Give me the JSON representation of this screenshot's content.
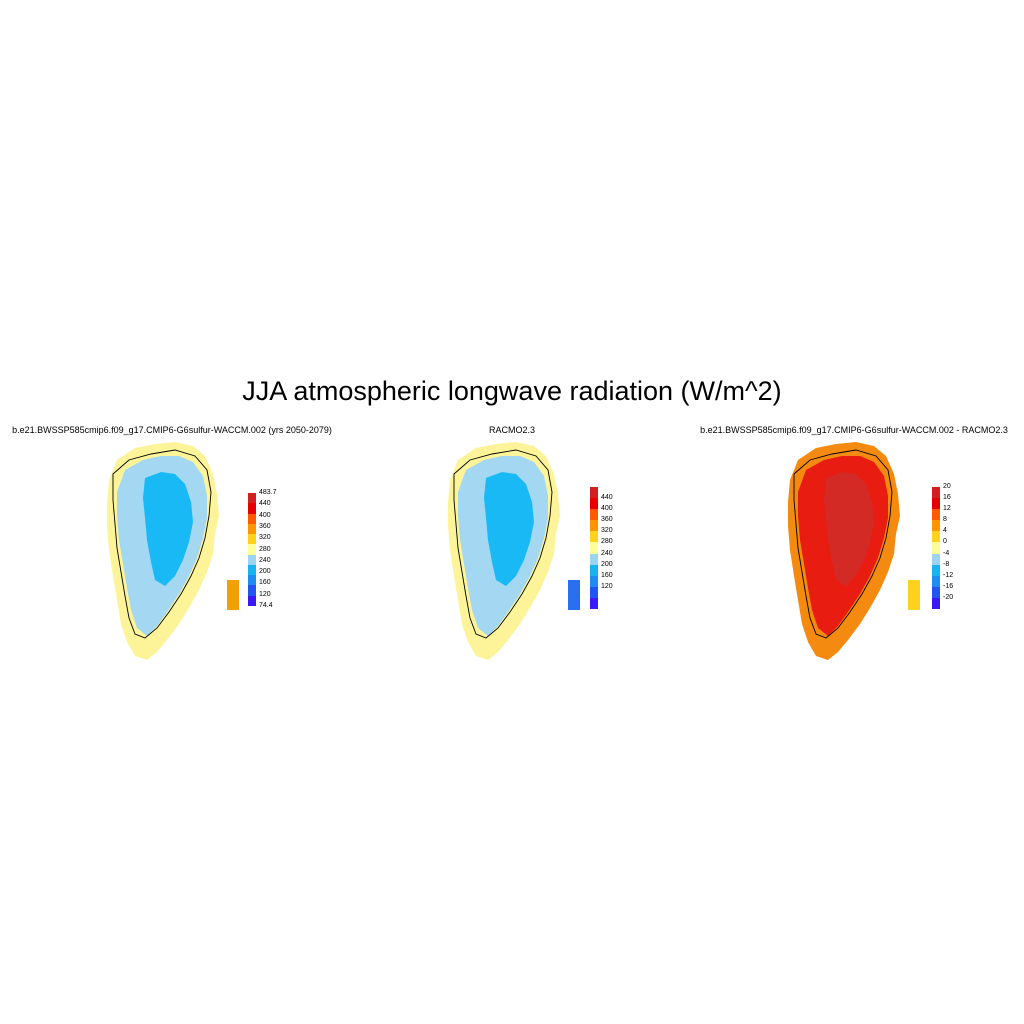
{
  "title": "JJA atmospheric longwave radiation (W/m^2)",
  "panels": [
    {
      "id": "model",
      "title": "b.e21.BWSSP585cmip6.f09_g17.CMIP6-G6sulfur-WACCM.002 (yrs 2050-2079)",
      "colorbar": {
        "colors": [
          "#3a19f5",
          "#2255f0",
          "#1e8cf0",
          "#19b4f0",
          "#9cd3ee",
          "#ffff99",
          "#ffd21e",
          "#ff9600",
          "#ff5a00",
          "#e60000",
          "#d02020"
        ],
        "labels": [
          "483.7",
          "440",
          "400",
          "360",
          "320",
          "280",
          "240",
          "200",
          "160",
          "120",
          "74.4"
        ]
      },
      "fill": {
        "outer": "#fdf49a",
        "mid": "#a3d7f2",
        "inner": "#19b9f5",
        "accent": "#f0a000"
      }
    },
    {
      "id": "obs",
      "title": "RACMO2.3",
      "colorbar": {
        "colors": [
          "#3a19f5",
          "#2255f0",
          "#1e8cf0",
          "#19b4f0",
          "#9cd3ee",
          "#ffff99",
          "#ffd21e",
          "#ff9600",
          "#ff5a00",
          "#e60000",
          "#d02020"
        ],
        "labels": [
          "440",
          "400",
          "360",
          "320",
          "280",
          "240",
          "200",
          "160",
          "120"
        ]
      },
      "fill": {
        "outer": "#fdf49a",
        "mid": "#a3d7f2",
        "inner": "#19b9f5",
        "accent": "#2a6ff0"
      }
    },
    {
      "id": "diff",
      "title": "b.e21.BWSSP585cmip6.f09_g17.CMIP6-G6sulfur-WACCM.002 - RACMO2.3",
      "colorbar": {
        "colors": [
          "#3a19f5",
          "#2255f0",
          "#1e8cf0",
          "#19b4f0",
          "#9cd3ee",
          "#ffff99",
          "#ffd21e",
          "#ff9600",
          "#ff5a00",
          "#e60000",
          "#d02020"
        ],
        "labels": [
          "20",
          "16",
          "12",
          "8",
          "4",
          "0",
          "-4",
          "-8",
          "-12",
          "-16",
          "-20"
        ]
      },
      "fill": {
        "outer": "#f58a10",
        "mid": "#e81c10",
        "inner": "#d32a26",
        "accent": "#ffd21e"
      }
    }
  ]
}
